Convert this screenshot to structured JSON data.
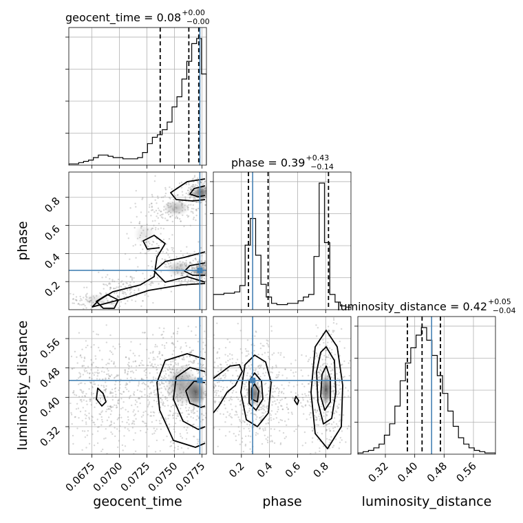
{
  "chart_data": {
    "type": "corner",
    "colors": {
      "truth": "#4682b4",
      "hist": "#000000",
      "samples": "#8c8c8c",
      "grid": "#b0b0b0"
    },
    "grid": true,
    "parameters": [
      {
        "name": "geocent_time",
        "axis_label": "geocent_time",
        "range": [
          0.0654,
          0.0779
        ],
        "ticks": [
          0.0675,
          0.07,
          0.0725,
          0.075,
          0.0775
        ],
        "tick_labels": [
          "0.0675",
          "0.0700",
          "0.0725",
          "0.0750",
          "0.0775"
        ],
        "truth": 0.0773,
        "quantiles": [
          0.0737,
          0.0763,
          0.0772
        ],
        "title": {
          "label": "geocent_time = 0.08",
          "plus": "+0.00",
          "minus": "−0.00"
        },
        "hist": [
          0.01,
          0.01,
          0.02,
          0.03,
          0.04,
          0.06,
          0.08,
          0.08,
          0.07,
          0.06,
          0.06,
          0.05,
          0.05,
          0.05,
          0.06,
          0.1,
          0.17,
          0.22,
          0.24,
          0.28,
          0.34,
          0.46,
          0.54,
          0.68,
          0.82,
          0.96,
          1.0,
          0.72
        ]
      },
      {
        "name": "phase",
        "axis_label": "phase",
        "range": [
          0.0,
          0.98
        ],
        "ticks": [
          0.2,
          0.4,
          0.6,
          0.8
        ],
        "tick_labels": [
          "0.2",
          "0.4",
          "0.6",
          "0.8"
        ],
        "truth": 0.28,
        "quantiles": [
          0.25,
          0.39,
          0.82
        ],
        "title": {
          "label": "phase = 0.39",
          "plus": "+0.43",
          "minus": "−0.14"
        },
        "hist": [
          0.12,
          0.12,
          0.13,
          0.13,
          0.14,
          0.19,
          0.51,
          0.72,
          0.43,
          0.2,
          0.1,
          0.05,
          0.04,
          0.04,
          0.05,
          0.05,
          0.07,
          0.1,
          0.12,
          0.42,
          1.0,
          0.53,
          0.12,
          0.06,
          0.03,
          0.02
        ]
      },
      {
        "name": "luminosity_distance",
        "axis_label": "luminosity_distance",
        "range": [
          0.245,
          0.62
        ],
        "ticks": [
          0.32,
          0.4,
          0.48,
          0.56
        ],
        "tick_labels": [
          "0.32",
          "0.40",
          "0.48",
          "0.56"
        ],
        "truth": 0.446,
        "quantiles": [
          0.38,
          0.42,
          0.47
        ],
        "title": {
          "label": "luminosity_distance = 0.42",
          "plus": "+0.05",
          "minus": "−0.04"
        },
        "hist": [
          0.01,
          0.02,
          0.03,
          0.05,
          0.08,
          0.15,
          0.24,
          0.38,
          0.58,
          0.72,
          0.84,
          0.94,
          1.0,
          0.9,
          0.78,
          0.62,
          0.48,
          0.34,
          0.22,
          0.13,
          0.08,
          0.05,
          0.03,
          0.02,
          0.01,
          0.01
        ]
      }
    ]
  }
}
